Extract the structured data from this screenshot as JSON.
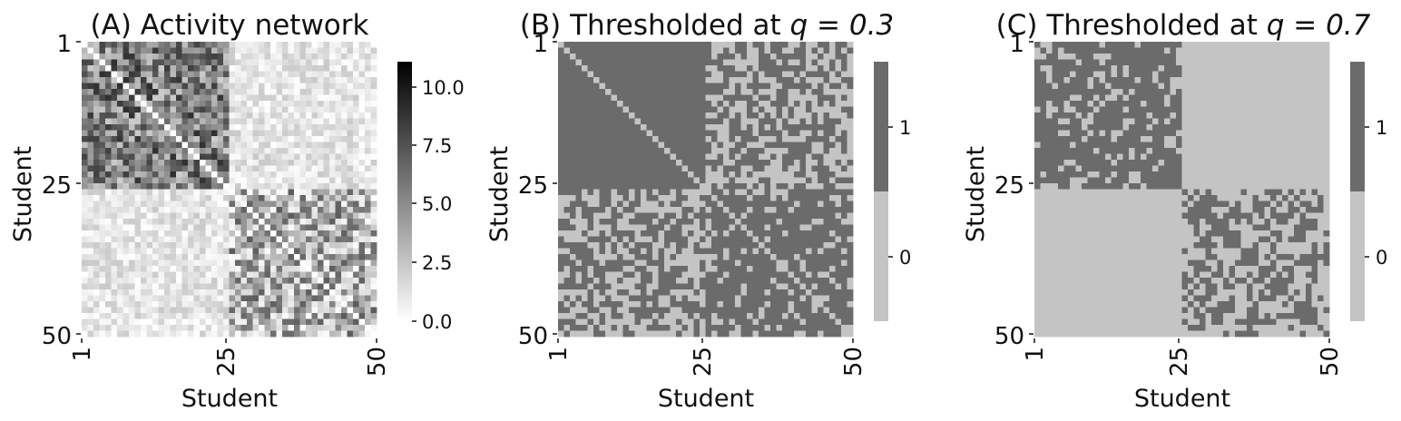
{
  "chart_data": [
    {
      "type": "heatmap",
      "title": "(A) Activity network",
      "xlabel": "Student",
      "ylabel": "Student",
      "xticks": [
        "1",
        "25",
        "50"
      ],
      "yticks": [
        "1",
        "25",
        "50"
      ],
      "size": 50,
      "groups": [
        [
          1,
          25
        ],
        [
          26,
          50
        ]
      ],
      "value_range": [
        0,
        11
      ],
      "within_group_typical": 5.5,
      "between_group_typical": 1.0,
      "colorbar": {
        "ticks": [
          0.0,
          2.5,
          5.0,
          7.5,
          10.0
        ],
        "labels": [
          "0.0",
          "2.5",
          "5.0",
          "7.5",
          "10.0"
        ],
        "colors": [
          "#ffffff",
          "#000000"
        ]
      }
    },
    {
      "type": "heatmap",
      "title_text": "(B) Thresholded at ",
      "title_math": "q = 0.3",
      "xlabel": "Student",
      "ylabel": "Student",
      "xticks": [
        "1",
        "25",
        "50"
      ],
      "yticks": [
        "1",
        "25",
        "50"
      ],
      "size": 50,
      "threshold_q": 0.3,
      "values": [
        0,
        1
      ],
      "colorbar": {
        "labels": [
          "1",
          "0"
        ],
        "colors": {
          "1": "#6b6b6b",
          "0": "#c4c4c4"
        }
      }
    },
    {
      "type": "heatmap",
      "title_text": "(C) Thresholded at ",
      "title_math": "q = 0.7",
      "xlabel": "Student",
      "ylabel": "Student",
      "xticks": [
        "1",
        "25",
        "50"
      ],
      "yticks": [
        "1",
        "25",
        "50"
      ],
      "size": 50,
      "threshold_q": 0.7,
      "values": [
        0,
        1
      ],
      "colorbar": {
        "labels": [
          "1",
          "0"
        ],
        "colors": {
          "1": "#6b6b6b",
          "0": "#c4c4c4"
        }
      }
    }
  ]
}
